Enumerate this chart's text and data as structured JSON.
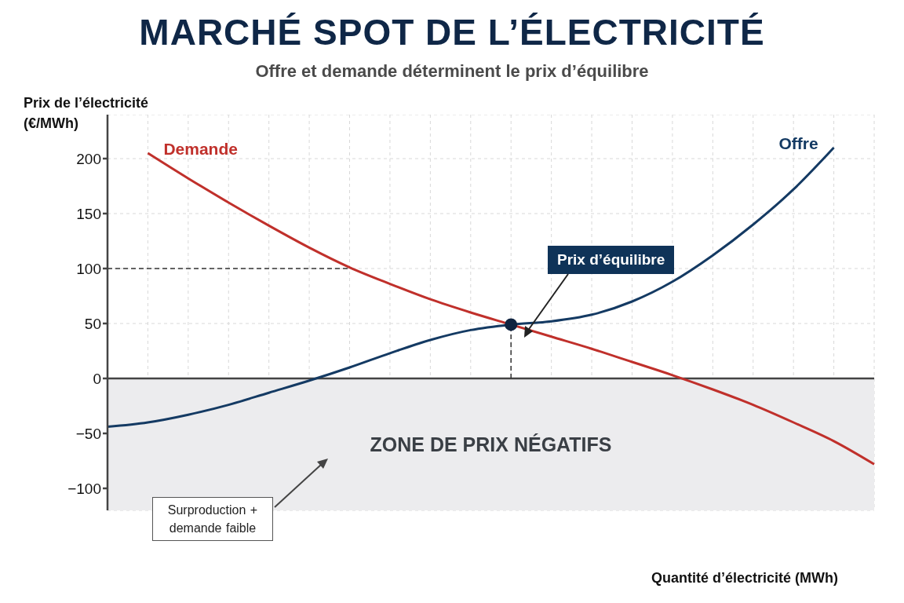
{
  "chart_data": {
    "type": "line",
    "title": "MARCHÉ SPOT DE L’ÉLECTRICITÉ",
    "subtitle": "Offre et demande déterminent le prix d’équilibre",
    "ylabel": "Prix de l’électricité (€/MWh)",
    "xlabel": "Quantité d’électricité (MWh)",
    "categories": [
      null,
      null,
      null,
      null,
      null,
      null,
      null,
      null,
      null,
      null,
      null,
      null,
      null,
      null,
      null,
      null,
      null,
      null,
      null,
      null
    ],
    "series": [
      {
        "name": "Demande",
        "color": "#c0302b",
        "values": [
          null,
          205,
          182,
          160,
          139,
          119,
          101,
          86,
          72,
          60,
          49,
          38,
          27,
          15,
          3,
          -10,
          -24,
          -40,
          -57,
          -78
        ]
      },
      {
        "name": "Offre",
        "color": "#143a63",
        "values": [
          -44,
          -40,
          -33,
          -24,
          -13,
          -2,
          10,
          23,
          35,
          44,
          49,
          52,
          58,
          70,
          88,
          112,
          140,
          172,
          210,
          null
        ]
      },
      {
        "type": "scatter",
        "marker": "circle",
        "color": "#0f2340",
        "values": [
          null,
          null,
          null,
          null,
          null,
          null,
          null,
          null,
          null,
          null,
          49,
          null,
          null,
          null,
          null,
          null,
          null,
          null,
          null,
          null
        ]
      }
    ],
    "ylim": [
      -120,
      240
    ],
    "yticks": [
      -100,
      -50,
      0,
      50,
      100,
      150,
      200
    ],
    "grid": true,
    "legend": false,
    "marker": "none",
    "ref_lines": [
      {
        "axis": "y",
        "value": 100,
        "line_style": "dashed",
        "color": "#333333"
      }
    ],
    "bands": [
      {
        "axis": "y",
        "from": -120,
        "to": 0,
        "label": "ZONE DE PRIX NÉGATIFS",
        "color": "#ececee"
      }
    ],
    "annotations": [
      "Prix d’équilibre",
      "Surproduction + demande faible"
    ]
  }
}
